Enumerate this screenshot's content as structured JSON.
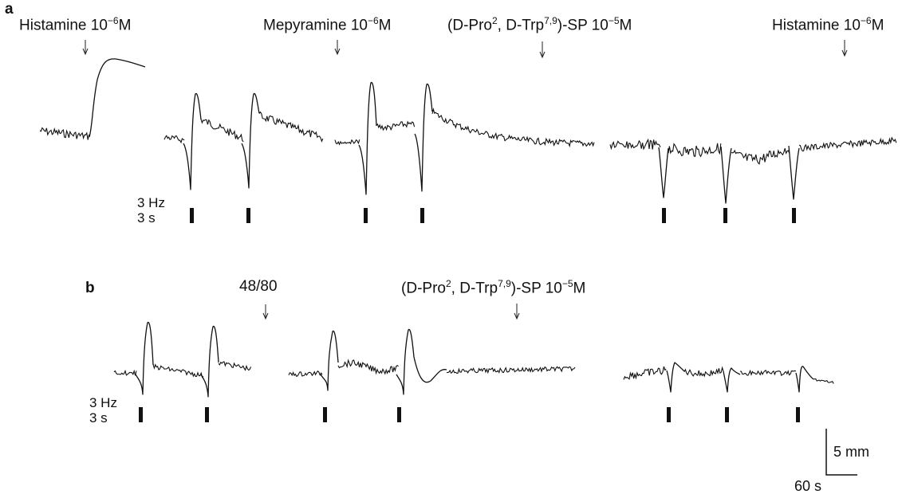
{
  "panel_a": {
    "letter": "a",
    "annotations": [
      {
        "agent": "Histamine",
        "conc_base": "10",
        "conc_exp": "−6",
        "unit": "M"
      },
      {
        "agent": "Mepyramine",
        "conc_base": "10",
        "conc_exp": "−6",
        "unit": "M"
      },
      {
        "agent_pre": "(",
        "d1": "D",
        "pro": "-Pro",
        "pro_sup": "2",
        "comma": ", ",
        "d2": "D",
        "trp": "-Trp",
        "trp_sup": "7,9",
        "agent_post": ")-SP",
        "conc_base": " 10",
        "conc_exp": "−5",
        "unit": "M"
      },
      {
        "agent": "Histamine",
        "conc_base": "10",
        "conc_exp": "−6",
        "unit": "M"
      }
    ],
    "stim_freq": "3 Hz",
    "stim_dur": "3 s"
  },
  "panel_b": {
    "letter": "b",
    "annotations": [
      {
        "agent": "48/80"
      },
      {
        "agent_pre": "(",
        "d1": "D",
        "pro": "-Pro",
        "pro_sup": "2",
        "comma": ", ",
        "d2": "D",
        "trp": "-Trp",
        "trp_sup": "7,9",
        "agent_post": ")-SP",
        "conc_base": " 10",
        "conc_exp": "−5",
        "unit": "M"
      }
    ],
    "stim_freq": "3 Hz",
    "stim_dur": "3 s"
  },
  "scale_bar": {
    "vertical_label": "5 mm",
    "horizontal_label": "60 s"
  }
}
